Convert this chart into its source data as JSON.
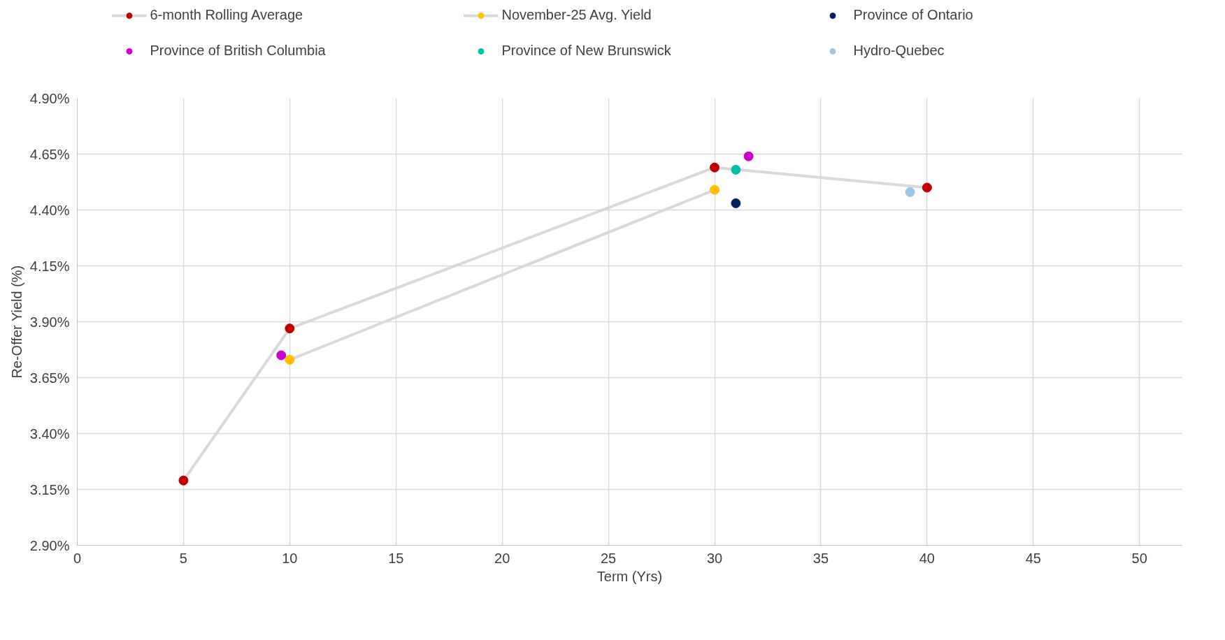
{
  "chart_data": {
    "type": "scatter",
    "xlabel": "Term (Yrs)",
    "ylabel": "Re-Offer Yield (%)",
    "xlim": [
      0,
      52
    ],
    "xticks": [
      0,
      5,
      10,
      15,
      20,
      25,
      30,
      35,
      40,
      45,
      50
    ],
    "ylim": [
      2.9,
      4.9
    ],
    "yticks": [
      {
        "value": 2.9,
        "label": "2.90%"
      },
      {
        "value": 3.15,
        "label": "3.15%"
      },
      {
        "value": 3.4,
        "label": "3.40%"
      },
      {
        "value": 3.65,
        "label": "3.65%"
      },
      {
        "value": 3.9,
        "label": "3.90%"
      },
      {
        "value": 4.15,
        "label": "4.15%"
      },
      {
        "value": 4.4,
        "label": "4.40%"
      },
      {
        "value": 4.65,
        "label": "4.65%"
      },
      {
        "value": 4.9,
        "label": "4.90%"
      }
    ],
    "grid": true,
    "legend": "top",
    "marker": "circle",
    "series": [
      {
        "name": "6-month Rolling Average",
        "type": "line",
        "color": "#c00000",
        "x": [
          5,
          10,
          30,
          40
        ],
        "values": [
          3.19,
          3.87,
          4.59,
          4.5
        ]
      },
      {
        "name": "November-25 Avg. Yield",
        "type": "line",
        "color": "#ffc000",
        "x": [
          10,
          30
        ],
        "values": [
          3.73,
          4.49
        ]
      },
      {
        "name": "Province of Ontario",
        "color": "#002060",
        "x": [
          31
        ],
        "values": [
          4.43
        ]
      },
      {
        "name": "Province of British Columbia",
        "color": "#cc00cc",
        "x": [
          9.6,
          31.6
        ],
        "values": [
          3.75,
          4.64
        ]
      },
      {
        "name": "Province of New Brunswick",
        "color": "#00bfa0",
        "x": [
          31
        ],
        "values": [
          4.58
        ]
      },
      {
        "name": "Hydro-Quebec",
        "color": "#9dc3e6",
        "x": [
          39.2
        ],
        "values": [
          4.48
        ]
      }
    ]
  }
}
